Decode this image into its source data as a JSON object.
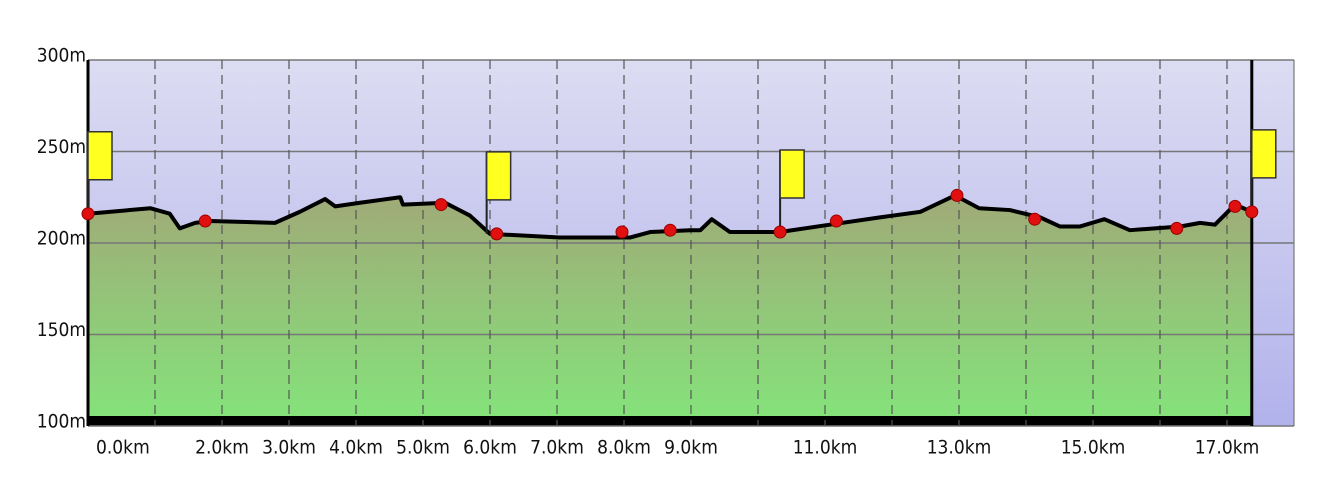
{
  "chart_data": {
    "type": "area",
    "x": [
      0,
      0.93,
      1.22,
      1.37,
      1.6,
      1.82,
      2.79,
      3.16,
      3.54,
      3.69,
      4.06,
      4.66,
      4.7,
      5.33,
      5.7,
      6.0,
      7.04,
      8.09,
      8.39,
      8.99,
      9.14,
      9.31,
      9.58,
      10.33,
      11.07,
      11.82,
      12.42,
      12.94,
      13.3,
      13.76,
      14.21,
      14.51,
      14.8,
      15.17,
      15.55,
      16.3,
      16.6,
      16.82,
      17.12,
      17.37
    ],
    "values": [
      216,
      219,
      216,
      208,
      211,
      212,
      211,
      217,
      224,
      220,
      222,
      225,
      221,
      222,
      215,
      205,
      203,
      203,
      206,
      207,
      207,
      213,
      206,
      206,
      210,
      214,
      217,
      226,
      219,
      218,
      214,
      209,
      209,
      213,
      207,
      209,
      211,
      210,
      221,
      217
    ],
    "color": "#000000",
    "waypoints": {
      "x": [
        0,
        1.75,
        5.27,
        6.1,
        7.97,
        8.69,
        10.33,
        11.17,
        12.97,
        14.13,
        16.25,
        17.12,
        17.37
      ],
      "values": [
        216,
        212,
        221,
        205,
        206,
        207,
        206,
        212,
        226,
        213,
        208,
        220,
        217
      ],
      "color": "#e01010"
    },
    "flags": [
      0,
      5.95,
      10.33,
      17.37
    ],
    "xlim": [
      0,
      18
    ],
    "xticks": [
      {
        "value": 0,
        "label": "0.0km"
      },
      {
        "value": 2,
        "label": "2.0km"
      },
      {
        "value": 3,
        "label": "3.0km"
      },
      {
        "value": 4,
        "label": "4.0km"
      },
      {
        "value": 5,
        "label": "5.0km"
      },
      {
        "value": 6,
        "label": "6.0km"
      },
      {
        "value": 7,
        "label": "7.0km"
      },
      {
        "value": 8,
        "label": "8.0km"
      },
      {
        "value": 9,
        "label": "9.0km"
      },
      {
        "value": 11,
        "label": "11.0km"
      },
      {
        "value": 13,
        "label": "13.0km"
      },
      {
        "value": 15,
        "label": "15.0km"
      },
      {
        "value": 17,
        "label": "17.0km"
      }
    ],
    "xgrid": [
      1,
      2,
      3,
      4,
      5,
      6,
      7,
      8,
      9,
      10,
      11,
      12,
      13,
      14,
      15,
      16,
      17,
      18
    ],
    "ylim": [
      100,
      300
    ],
    "yticks": [
      {
        "value": 100,
        "label": "100m"
      },
      {
        "value": 150,
        "label": "150m"
      },
      {
        "value": 200,
        "label": "200m"
      },
      {
        "value": 250,
        "label": "250m"
      },
      {
        "value": 300,
        "label": "300m"
      }
    ],
    "grid": true
  }
}
